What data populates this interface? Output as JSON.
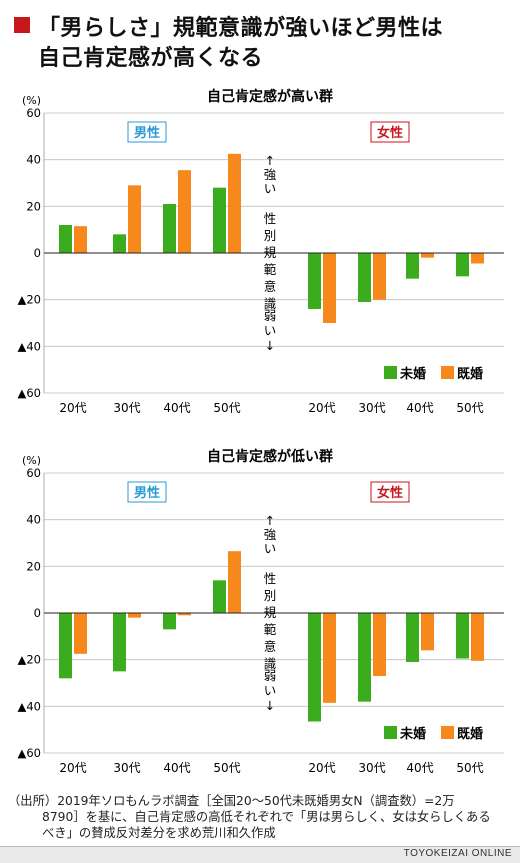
{
  "header": {
    "title_line1": "「男らしさ」規範意識が強いほど男性は",
    "title_line2": "自己肯定感が高くなる"
  },
  "legend": {
    "unmarried": "未婚",
    "married": "既婚"
  },
  "colors": {
    "unmarried": "#3aac1e",
    "married": "#f7891c",
    "title_square": "#c8161d",
    "male_label": "#2a9bd6",
    "female_label": "#c8161d"
  },
  "middle_label": {
    "top": "↑強い",
    "middle": "性別規範意識",
    "bottom": "弱い↓"
  },
  "chart_data": [
    {
      "type": "bar",
      "title": "自己肯定感が高い群",
      "unit": "(%)",
      "ylim": [
        -60,
        60
      ],
      "y_ticks": [
        "60",
        "40",
        "20",
        "0",
        "▲20",
        "▲40",
        "▲60"
      ],
      "panels": [
        {
          "label": "男性",
          "categories": [
            "20代",
            "30代",
            "40代",
            "50代"
          ],
          "series": [
            {
              "name": "未婚",
              "values": [
                12,
                8,
                21,
                28
              ]
            },
            {
              "name": "既婚",
              "values": [
                11.5,
                29,
                35.5,
                42.5
              ]
            }
          ]
        },
        {
          "label": "女性",
          "categories": [
            "20代",
            "30代",
            "40代",
            "50代"
          ],
          "series": [
            {
              "name": "未婚",
              "values": [
                -24,
                -21,
                -11,
                -10
              ]
            },
            {
              "name": "既婚",
              "values": [
                -30,
                -20,
                -2,
                -4.5
              ]
            }
          ]
        }
      ]
    },
    {
      "type": "bar",
      "title": "自己肯定感が低い群",
      "unit": "(%)",
      "ylim": [
        -60,
        60
      ],
      "y_ticks": [
        "60",
        "40",
        "20",
        "0",
        "▲20",
        "▲40",
        "▲60"
      ],
      "panels": [
        {
          "label": "男性",
          "categories": [
            "20代",
            "30代",
            "40代",
            "50代"
          ],
          "series": [
            {
              "name": "未婚",
              "values": [
                -28,
                -25,
                -7,
                14
              ]
            },
            {
              "name": "既婚",
              "values": [
                -17.5,
                -2,
                -1,
                26.5
              ]
            }
          ]
        },
        {
          "label": "女性",
          "categories": [
            "20代",
            "30代",
            "40代",
            "50代"
          ],
          "series": [
            {
              "name": "未婚",
              "values": [
                -46.5,
                -38,
                -21,
                -19.5
              ]
            },
            {
              "name": "既婚",
              "values": [
                -38.5,
                -27,
                -16,
                -20.5
              ]
            }
          ]
        }
      ]
    }
  ],
  "footnote": {
    "line1": "（出所）2019年ソロもんラボ調査［全国20〜50代未既婚男女N（調査数）=2万",
    "line2": "8790］を基に、自己肯定感の高低それぞれで「男は男らしく、女は女らしくある",
    "line3": "べき」の賛成反対差分を求め荒川和久作成"
  },
  "brand": "TOYOKEIZAI ONLINE"
}
